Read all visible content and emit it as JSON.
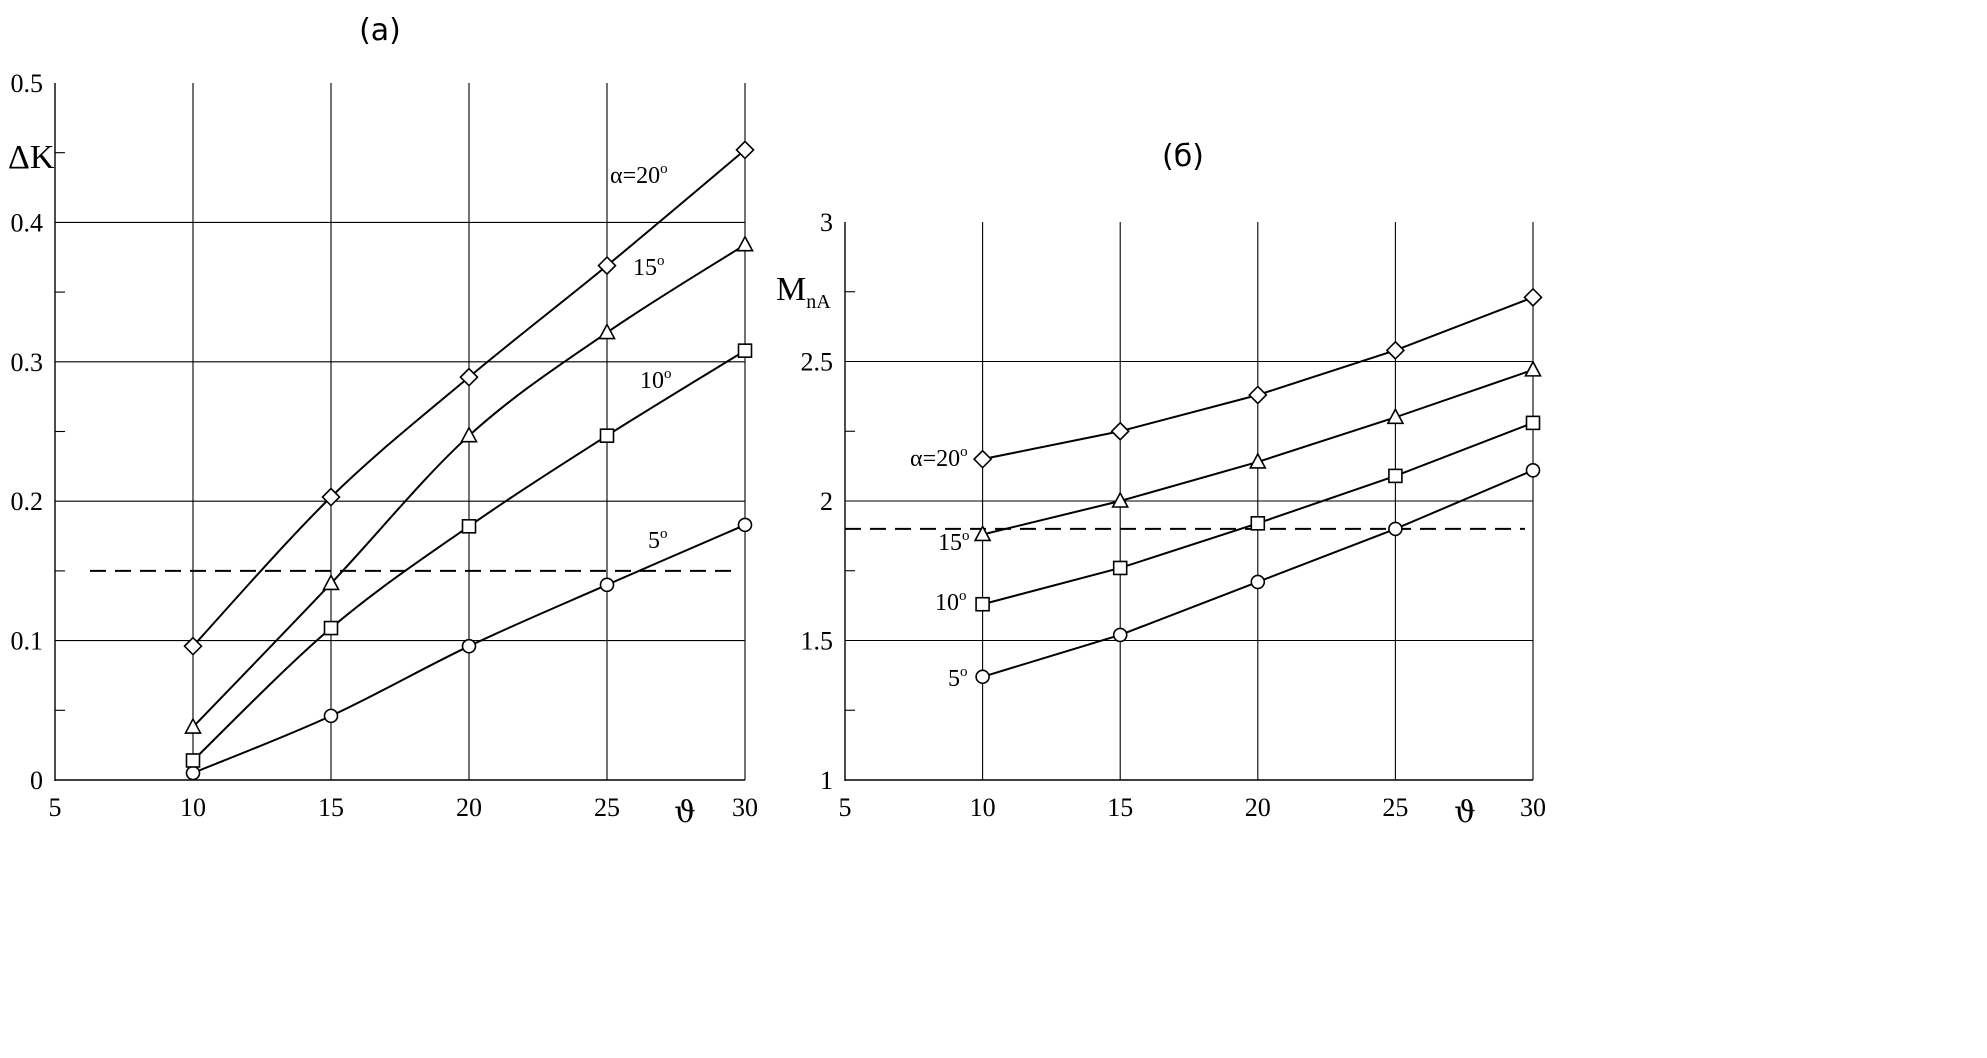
{
  "chart_data": [
    {
      "type": "line",
      "panel_label": "(a)",
      "ylabel": "ΔK",
      "xvar": "ϑ",
      "xlim": [
        5,
        30
      ],
      "ylim": [
        0,
        0.5
      ],
      "xticks": [
        "5",
        "10",
        "15",
        "20",
        "25",
        "30"
      ],
      "yticks": [
        "0",
        "0.1",
        "0.2",
        "0.3",
        "0.4",
        "0.5"
      ],
      "grid": true,
      "x": [
        10,
        15,
        20,
        25,
        30
      ],
      "reference_line": {
        "y": 0.15,
        "style": "dashed"
      },
      "series": [
        {
          "name": "5",
          "label": "5°",
          "marker": "circle",
          "values": [
            0.005,
            0.046,
            0.096,
            0.14,
            0.183
          ]
        },
        {
          "name": "10",
          "label": "10°",
          "marker": "square",
          "values": [
            0.014,
            0.109,
            0.182,
            0.247,
            0.308
          ]
        },
        {
          "name": "15",
          "label": "15°",
          "marker": "triangle",
          "values": [
            0.038,
            0.141,
            0.247,
            0.321,
            0.384
          ]
        },
        {
          "name": "20",
          "label": "α=20°",
          "marker": "diamond",
          "values": [
            0.096,
            0.203,
            0.289,
            0.369,
            0.452
          ]
        }
      ]
    },
    {
      "type": "line",
      "panel_label": "(б)",
      "ylabel_main": "M",
      "ylabel_sub": "nA",
      "xvar": "ϑ",
      "xlim": [
        5,
        30
      ],
      "ylim": [
        1,
        3
      ],
      "xticks": [
        "5",
        "10",
        "15",
        "20",
        "25",
        "30"
      ],
      "yticks": [
        "1",
        "1.5",
        "2",
        "2.5",
        "3"
      ],
      "grid": true,
      "x": [
        10,
        15,
        20,
        25,
        30
      ],
      "reference_line": {
        "y": 1.9,
        "style": "dashed"
      },
      "series": [
        {
          "name": "5",
          "label": "5°",
          "marker": "circle",
          "values": [
            1.37,
            1.52,
            1.71,
            1.9,
            2.11
          ]
        },
        {
          "name": "10",
          "label": "10°",
          "marker": "square",
          "values": [
            1.63,
            1.76,
            1.92,
            2.09,
            2.28
          ]
        },
        {
          "name": "15",
          "label": "15°",
          "marker": "triangle",
          "values": [
            1.88,
            2.0,
            2.14,
            2.3,
            2.47
          ]
        },
        {
          "name": "20",
          "label": "α=20°",
          "marker": "diamond",
          "values": [
            2.15,
            2.25,
            2.38,
            2.54,
            2.73
          ]
        }
      ]
    }
  ]
}
